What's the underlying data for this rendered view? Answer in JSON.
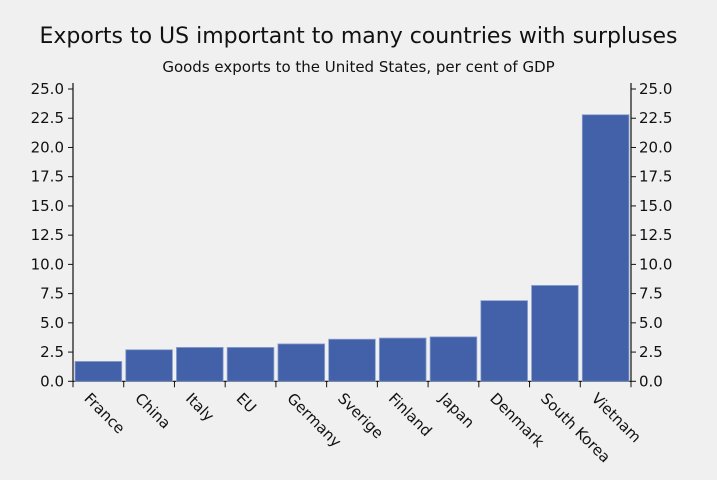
{
  "chart_data": {
    "type": "bar",
    "title": "Exports to US important to many countries with surpluses",
    "subtitle": "Goods exports to the United States, per cent of GDP",
    "categories": [
      "France",
      "China",
      "Italy",
      "EU",
      "Germany",
      "Sverige",
      "Finland",
      "Japan",
      "Denmark",
      "South Korea",
      "Vietnam"
    ],
    "values": [
      1.7,
      2.7,
      2.9,
      2.9,
      3.2,
      3.6,
      3.7,
      3.8,
      6.9,
      8.2,
      22.8
    ],
    "ylim": [
      0,
      25
    ],
    "yticks": [
      "0.0",
      "2.5",
      "5.0",
      "7.5",
      "10.0",
      "12.5",
      "15.0",
      "17.5",
      "20.0",
      "22.5",
      "25.0"
    ],
    "axes": "left and right",
    "grid": false,
    "bar_color": "#4361a8"
  }
}
